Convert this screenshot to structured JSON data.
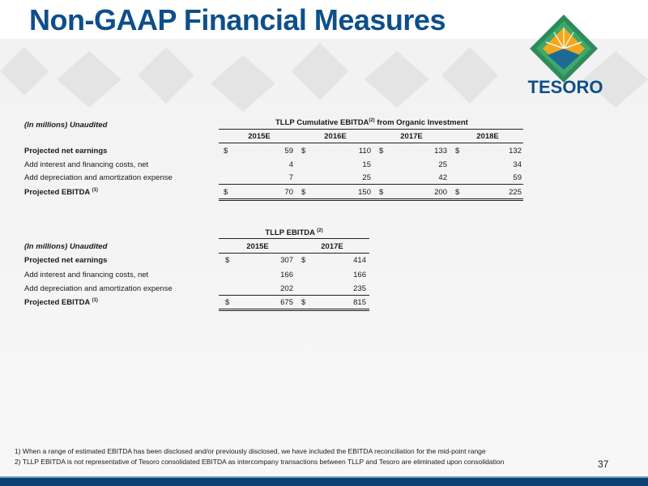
{
  "header": {
    "title": "Non-GAAP Financial Measures",
    "logo_text": "TESORO"
  },
  "table1": {
    "unit_label": "(In millions) Unaudited",
    "title": "TLLP Cumulative EBITDA",
    "title_sup": "(2)",
    "title_suffix": "from Organic Investment",
    "columns": [
      "2015E",
      "2016E",
      "2017E",
      "2018E"
    ],
    "rows": [
      {
        "label": "Projected net earnings",
        "values": [
          "59",
          "110",
          "133",
          "132"
        ]
      },
      {
        "label": "Add interest and financing costs, net",
        "values": [
          "4",
          "15",
          "25",
          "34"
        ]
      },
      {
        "label": "Add depreciation and amortization expense",
        "values": [
          "7",
          "25",
          "42",
          "59"
        ]
      }
    ],
    "total": {
      "label": "Projected EBITDA",
      "sup": "(1)",
      "values": [
        "70",
        "150",
        "200",
        "225"
      ]
    },
    "currency": "$"
  },
  "table2": {
    "title": "TLLP EBITDA",
    "title_sup": "(2)",
    "unit_label": "(In millions) Unaudited",
    "columns": [
      "2015E",
      "2017E"
    ],
    "rows": [
      {
        "label": "Projected net earnings",
        "values": [
          "307",
          "414"
        ]
      },
      {
        "label": "Add interest and financing costs, net",
        "values": [
          "166",
          "166"
        ]
      },
      {
        "label": "Add depreciation and amortization expense",
        "values": [
          "202",
          "235"
        ]
      }
    ],
    "total": {
      "label": "Projected EBITDA",
      "sup": "(1)",
      "values": [
        "675",
        "815"
      ]
    },
    "currency": "$"
  },
  "footnotes": [
    "1) When a range of estimated EBITDA has been disclosed and/or previously disclosed, we have included the EBITDA reconciliation for the mid-point range",
    "2) TLLP EBITDA is not representative of Tesoro consolidated EBITDA as intercompany transactions between TLLP and Tesoro are eliminated upon consolidation"
  ],
  "page_number": "37",
  "colors": {
    "title": "#0e4f8a",
    "bar": "#0e3f73"
  }
}
